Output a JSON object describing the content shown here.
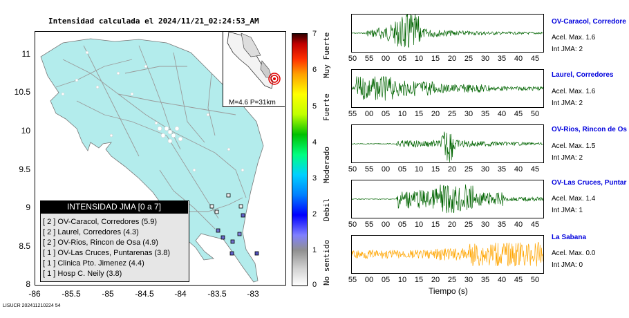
{
  "title": "Intensidad calculada el 2024/11/21_02:24:53_AM",
  "map": {
    "lat_ticks": [
      "11",
      "10.5",
      "10",
      "9.5",
      "9",
      "8.5",
      "8"
    ],
    "lon_ticks": [
      "-86",
      "-85.5",
      "-85",
      "-84.5",
      "-84",
      "-83.5",
      "-83"
    ],
    "inset_label": "M=4.6 P=31km",
    "colors": {
      "land": "#b3ecec",
      "sea": "#ffffff",
      "roads": "#999999",
      "epicenter": "#e00000"
    }
  },
  "legend": {
    "title": "INTENSIDAD JMA [0 a 7]",
    "items": [
      {
        "level": "[ 2 ]",
        "text": "OV-Caracol, Corredores (5.9)"
      },
      {
        "level": "[ 2 ]",
        "text": "Laurel, Corredores (4.3)"
      },
      {
        "level": "[ 2 ]",
        "text": "OV-Rios, Rincon de Osa (4.9)"
      },
      {
        "level": "[ 1 ]",
        "text": "OV-Las Cruces, Puntarenas (3.8)"
      },
      {
        "level": "[ 1 ]",
        "text": "Clinica Pto. Jimenez (4.4)"
      },
      {
        "level": "[ 1 ]",
        "text": "Hosp C. Neily (3.8)"
      }
    ]
  },
  "scale": {
    "numbers": [
      "7",
      "6",
      "5",
      "4",
      "3",
      "2",
      "1",
      "0"
    ],
    "words": [
      "Muy Fuerte",
      "Fuerte",
      "Moderado",
      "Debil",
      "No sentido"
    ]
  },
  "stations": [
    {
      "name": "OV-Caracol, Corredore",
      "acc": "Acel. Max. 1.6",
      "jma": "Int JMA: 2",
      "ticks": [
        "50",
        "55",
        "00",
        "05",
        "10",
        "15",
        "20",
        "25",
        "30",
        "35",
        "40",
        "45"
      ],
      "color": "#006400"
    },
    {
      "name": "Laurel, Corredores",
      "acc": "Acel. Max. 1.6",
      "jma": "Int JMA: 2",
      "ticks": [
        "55",
        "00",
        "05",
        "10",
        "15",
        "20",
        "25",
        "30",
        "35",
        "40",
        "45",
        "50"
      ],
      "color": "#006400"
    },
    {
      "name": "OV-Rios, Rincon de Os",
      "acc": "Acel. Max. 1.5",
      "jma": "Int JMA: 2",
      "ticks": [
        "50",
        "55",
        "00",
        "05",
        "10",
        "15",
        "20",
        "25",
        "30",
        "35",
        "40",
        "45"
      ],
      "color": "#006400"
    },
    {
      "name": "OV-Las Cruces, Puntar",
      "acc": "Acel. Max. 1.4",
      "jma": "Int JMA: 1",
      "ticks": [
        "50",
        "55",
        "00",
        "05",
        "10",
        "15",
        "20",
        "25",
        "30",
        "35",
        "40",
        "45"
      ],
      "color": "#006400"
    },
    {
      "name": "La Sabana",
      "acc": "Acel. Max. 0.0",
      "jma": "Int JMA: 0",
      "ticks": [
        "55",
        "00",
        "05",
        "10",
        "15",
        "20",
        "25",
        "30",
        "35",
        "40",
        "45",
        "50"
      ],
      "color": "#ffa500"
    }
  ],
  "xlabel": "Tiempo (s)",
  "footer": "LISUCR 202411210224 54"
}
